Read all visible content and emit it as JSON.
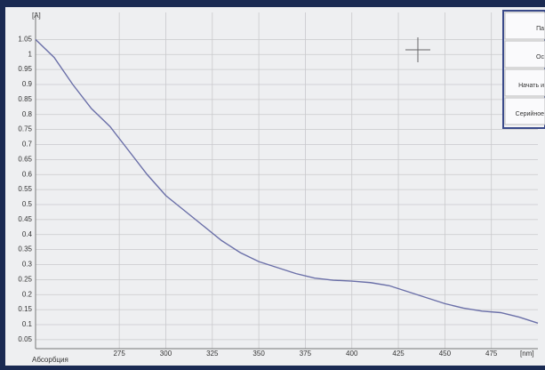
{
  "chart_data": {
    "type": "line",
    "y_label": "[A]",
    "x_label": "[nm]",
    "footer_label": "Абсорбция",
    "x": [
      230,
      240,
      250,
      260,
      270,
      280,
      290,
      300,
      310,
      320,
      330,
      340,
      350,
      360,
      370,
      380,
      390,
      400,
      410,
      420,
      430,
      440,
      450,
      460,
      470,
      480,
      490,
      500
    ],
    "values": [
      1.05,
      0.99,
      0.9,
      0.82,
      0.76,
      0.68,
      0.6,
      0.53,
      0.48,
      0.43,
      0.38,
      0.34,
      0.31,
      0.29,
      0.27,
      0.255,
      0.248,
      0.245,
      0.24,
      0.23,
      0.21,
      0.19,
      0.17,
      0.155,
      0.145,
      0.14,
      0.125,
      0.105
    ],
    "color": "#6a6fa8",
    "xlim": [
      230,
      500
    ],
    "xticks": [
      275,
      300,
      325,
      350,
      375,
      400,
      425,
      450,
      475
    ],
    "ylim": [
      0.02,
      1.14
    ],
    "yticks": [
      0.05,
      0.1,
      0.15,
      0.2,
      0.25,
      0.3,
      0.35,
      0.4,
      0.45,
      0.5,
      0.55,
      0.6,
      0.65,
      0.7,
      0.75,
      0.8,
      0.85,
      0.9,
      0.95,
      1,
      1.05
    ],
    "grid": true
  },
  "side_panel": {
    "buttons": [
      "Па",
      "Ос",
      "Начать и",
      "Серийное"
    ]
  }
}
